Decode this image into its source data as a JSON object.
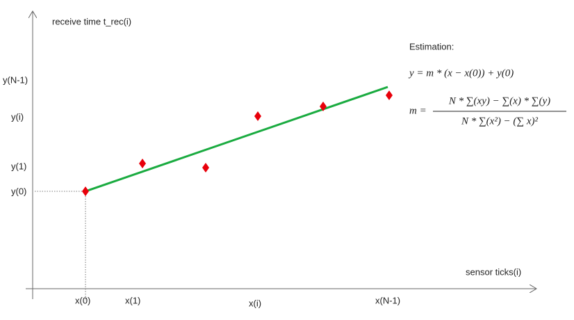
{
  "y_axis": {
    "label": "receive time t_rec(i)",
    "ticks": [
      "y(N-1)",
      "y(i)",
      "y(1)",
      "y(0)"
    ]
  },
  "x_axis": {
    "label": "sensor ticks(i)",
    "ticks": [
      "x(0)",
      "x(1)",
      "x(i)",
      "x(N-1)"
    ]
  },
  "estimation": {
    "title": "Estimation:",
    "line_equation": "y = m * (x − x(0)) + y(0)",
    "slope_lhs": "m =",
    "slope_numerator": "N * ∑(xy) − ∑(x) * ∑(y)",
    "slope_denominator": "N * ∑(x²) − (∑ x)²"
  }
}
